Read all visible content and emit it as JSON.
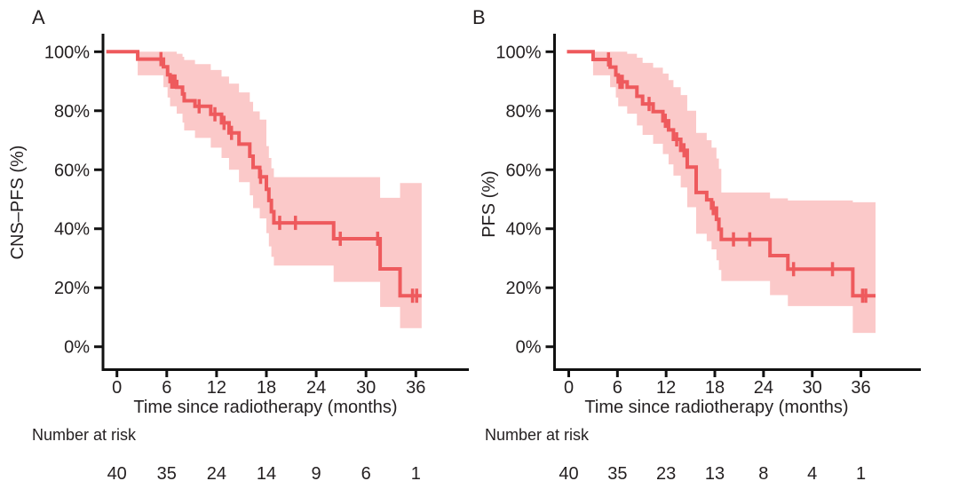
{
  "chart_data": [
    {
      "type": "line",
      "subtype": "kaplan_meier_step",
      "panel_label": "A",
      "ylabel": "CNS–PFS (%)",
      "xlabel": "Time since radiotherapy (months)",
      "xlim": [
        0,
        42
      ],
      "ylim": [
        0,
        100
      ],
      "x_ticks": [
        0,
        6,
        12,
        18,
        24,
        30,
        36
      ],
      "y_tick_values": [
        0,
        20,
        40,
        60,
        80,
        100
      ],
      "y_tick_labels": [
        "0%",
        "20%",
        "40%",
        "60%",
        "80%",
        "100%"
      ],
      "curve_color": "#ee5a5d",
      "ci_color": "#fbc9c9",
      "text_color": "#231f20",
      "axis_color": "#111111",
      "grid": false,
      "legend": "none",
      "end_time": 36.7,
      "steps": [
        [
          0,
          100
        ],
        [
          2.5,
          97.5
        ],
        [
          5.6,
          94.9
        ],
        [
          6.1,
          92.2
        ],
        [
          6.4,
          89.9
        ],
        [
          7.2,
          88.0
        ],
        [
          7.9,
          85.7
        ],
        [
          8.1,
          83.4
        ],
        [
          9.4,
          81.5
        ],
        [
          11.3,
          78.8
        ],
        [
          12.6,
          75.9
        ],
        [
          13.5,
          72.5
        ],
        [
          14.7,
          68.7
        ],
        [
          16.0,
          64.6
        ],
        [
          16.4,
          60.8
        ],
        [
          17.2,
          57.6
        ],
        [
          18.0,
          53.4
        ],
        [
          18.3,
          49.6
        ],
        [
          18.6,
          45.8
        ],
        [
          18.9,
          42.0
        ],
        [
          26.1,
          36.6
        ],
        [
          31.7,
          26.4
        ],
        [
          34.1,
          17.3
        ]
      ],
      "censor_times": [
        5.3,
        6.6,
        6.8,
        7.0,
        9.9,
        11.8,
        12.9,
        13.8,
        17.3,
        19.6,
        21.5,
        26.9,
        31.4,
        35.6,
        36.1
      ],
      "ci_band": [
        [
          2.5,
          92,
          100
        ],
        [
          5.6,
          88,
          100
        ],
        [
          6.1,
          84.5,
          100
        ],
        [
          6.4,
          81.5,
          100
        ],
        [
          7.2,
          79,
          99.3
        ],
        [
          7.9,
          76,
          98.3
        ],
        [
          8.1,
          73.3,
          97.2
        ],
        [
          9.4,
          70.8,
          95.8
        ],
        [
          11.3,
          67.5,
          93.8
        ],
        [
          12.6,
          64,
          91.6
        ],
        [
          13.5,
          60,
          89.2
        ],
        [
          14.7,
          55.8,
          86.2
        ],
        [
          16.0,
          51.3,
          83
        ],
        [
          16.4,
          47,
          79.8
        ],
        [
          17.2,
          43.5,
          77
        ],
        [
          18.0,
          38.5,
          68
        ],
        [
          18.3,
          34,
          64
        ],
        [
          18.6,
          30.5,
          60.5
        ],
        [
          18.9,
          27.5,
          57.5
        ],
        [
          26.1,
          22,
          57.5
        ],
        [
          31.7,
          13.5,
          50.5
        ],
        [
          34.1,
          6.3,
          55.5
        ]
      ],
      "number_at_risk": {
        "label": "Number at risk",
        "times": [
          0,
          6,
          12,
          18,
          24,
          30,
          36
        ],
        "counts": [
          40,
          35,
          24,
          14,
          9,
          6,
          1
        ]
      }
    },
    {
      "type": "line",
      "subtype": "kaplan_meier_step",
      "panel_label": "B",
      "ylabel": "PFS (%)",
      "xlabel": "Time since radiotherapy (months)",
      "xlim": [
        0,
        42
      ],
      "ylim": [
        0,
        100
      ],
      "x_ticks": [
        0,
        6,
        12,
        18,
        24,
        30,
        36
      ],
      "y_tick_values": [
        0,
        20,
        40,
        60,
        80,
        100
      ],
      "y_tick_labels": [
        "0%",
        "20%",
        "40%",
        "60%",
        "80%",
        "100%"
      ],
      "curve_color": "#ee5a5d",
      "ci_color": "#fbc9c9",
      "text_color": "#231f20",
      "axis_color": "#111111",
      "grid": false,
      "legend": "none",
      "end_time": 37.8,
      "steps": [
        [
          0,
          100
        ],
        [
          3.0,
          97.4
        ],
        [
          5.1,
          94.8
        ],
        [
          5.8,
          92.1
        ],
        [
          6.1,
          89.8
        ],
        [
          7.2,
          88.0
        ],
        [
          8.4,
          84.9
        ],
        [
          9.1,
          82.3
        ],
        [
          10.4,
          79.7
        ],
        [
          11.6,
          76.6
        ],
        [
          12.3,
          73.5
        ],
        [
          12.9,
          70.3
        ],
        [
          13.8,
          66.6
        ],
        [
          14.6,
          60.9
        ],
        [
          15.7,
          52.3
        ],
        [
          17.0,
          49.8
        ],
        [
          17.6,
          47.0
        ],
        [
          18.2,
          43.2
        ],
        [
          18.5,
          39.8
        ],
        [
          18.8,
          36.4
        ],
        [
          24.8,
          30.9
        ],
        [
          27.0,
          26.3
        ],
        [
          35.0,
          17.3
        ]
      ],
      "censor_times": [
        4.9,
        6.3,
        6.6,
        9.9,
        11.9,
        13.3,
        14.2,
        17.8,
        20.3,
        22.3,
        27.7,
        32.5,
        36.2,
        36.6
      ],
      "ci_band": [
        [
          3.0,
          92,
          100
        ],
        [
          5.1,
          88,
          100
        ],
        [
          5.8,
          84.5,
          100
        ],
        [
          6.1,
          81.5,
          100
        ],
        [
          7.2,
          79,
          99.3
        ],
        [
          8.4,
          75,
          98
        ],
        [
          9.1,
          71.8,
          96.2
        ],
        [
          10.4,
          68.8,
          94.6
        ],
        [
          11.6,
          65.3,
          92.6
        ],
        [
          12.3,
          61.8,
          90.4
        ],
        [
          12.9,
          58,
          88
        ],
        [
          13.8,
          54,
          85.3
        ],
        [
          14.6,
          47.3,
          80
        ],
        [
          15.7,
          38.3,
          72.5
        ],
        [
          17.0,
          35.8,
          70
        ],
        [
          17.6,
          33,
          67.5
        ],
        [
          18.2,
          29.3,
          63.8
        ],
        [
          18.5,
          26,
          60.3
        ],
        [
          18.8,
          22.3,
          52.3
        ],
        [
          24.8,
          17.5,
          50.3
        ],
        [
          27.0,
          13.8,
          49.6
        ],
        [
          35.0,
          4.7,
          49
        ]
      ],
      "number_at_risk": {
        "label": "Number at risk",
        "times": [
          0,
          6,
          12,
          18,
          24,
          30,
          36
        ],
        "counts": [
          40,
          35,
          23,
          13,
          8,
          4,
          1
        ]
      }
    }
  ]
}
